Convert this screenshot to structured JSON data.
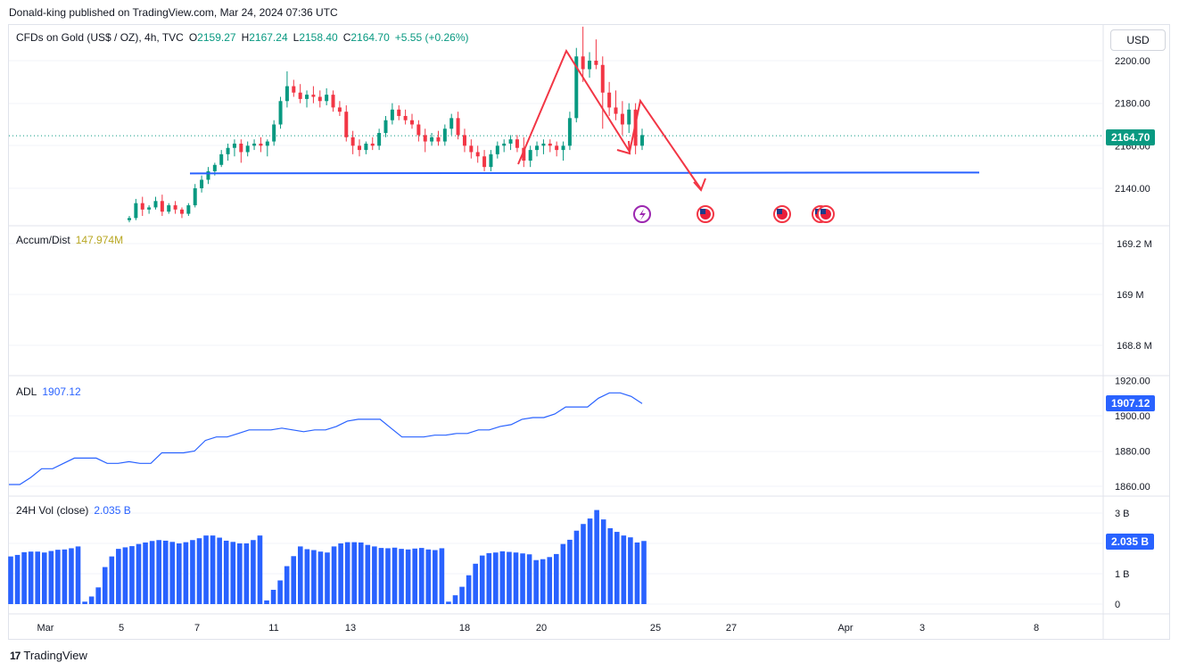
{
  "header": {
    "published": "Donald-king published on TradingView.com, Mar 24, 2024 07:36 UTC"
  },
  "symbol": {
    "name": "CFDs on Gold (US$ / OZ), 4h, TVC",
    "o_label": "O",
    "o": "2159.27",
    "h_label": "H",
    "h": "2167.24",
    "l_label": "L",
    "l": "2158.40",
    "c_label": "C",
    "c": "2164.70",
    "change": "+5.55 (+0.26%)"
  },
  "currency_button": "USD",
  "price_axis": {
    "ticks": [
      "2200.00",
      "2180.00",
      "2160.00",
      "2140.00"
    ],
    "current": "2164.70",
    "color_up": "#089981",
    "color_down": "#f23645"
  },
  "accum_dist": {
    "label": "Accum/Dist",
    "value": "147.974M",
    "ticks": [
      "169.2 M",
      "169 M",
      "168.8 M"
    ]
  },
  "adl": {
    "label": "ADL",
    "value": "1907.12",
    "ticks": [
      "1920.00",
      "1900.00",
      "1880.00",
      "1860.00"
    ],
    "current": "1907.12",
    "color": "#2962ff"
  },
  "volume": {
    "label": "24H Vol (close)",
    "value": "2.035 B",
    "ticks": [
      "3 B",
      "2 B",
      "1 B",
      "0"
    ],
    "current": "2.035 B",
    "color": "#2962ff"
  },
  "time_axis": [
    "Mar",
    "5",
    "7",
    "11",
    "13",
    "18",
    "20",
    "25",
    "27",
    "Apr",
    "3",
    "8"
  ],
  "footer": {
    "brand": "TradingView",
    "logo_glyph": "17"
  },
  "chart_data": {
    "type": "candlestick",
    "support_level": 2147,
    "candles": [
      [
        2125,
        2127,
        2124,
        2126
      ],
      [
        2126,
        2135,
        2125,
        2133
      ],
      [
        2133,
        2136,
        2127,
        2130
      ],
      [
        2130,
        2132,
        2128,
        2131
      ],
      [
        2131,
        2136,
        2130,
        2134
      ],
      [
        2134,
        2137,
        2127,
        2129
      ],
      [
        2129,
        2133,
        2128,
        2132
      ],
      [
        2132,
        2134,
        2128,
        2130
      ],
      [
        2130,
        2131,
        2126,
        2128
      ],
      [
        2128,
        2133,
        2127,
        2132
      ],
      [
        2132,
        2142,
        2131,
        2140
      ],
      [
        2140,
        2146,
        2138,
        2144
      ],
      [
        2144,
        2150,
        2142,
        2148
      ],
      [
        2148,
        2152,
        2146,
        2151
      ],
      [
        2151,
        2158,
        2150,
        2156
      ],
      [
        2156,
        2161,
        2153,
        2159
      ],
      [
        2159,
        2163,
        2155,
        2161
      ],
      [
        2161,
        2163,
        2152,
        2157
      ],
      [
        2157,
        2162,
        2155,
        2160
      ],
      [
        2160,
        2163,
        2158,
        2161
      ],
      [
        2161,
        2164,
        2157,
        2160
      ],
      [
        2160,
        2163,
        2155,
        2162
      ],
      [
        2162,
        2172,
        2160,
        2170
      ],
      [
        2170,
        2183,
        2168,
        2181
      ],
      [
        2181,
        2195,
        2178,
        2188
      ],
      [
        2188,
        2191,
        2183,
        2185
      ],
      [
        2185,
        2189,
        2180,
        2182
      ],
      [
        2182,
        2186,
        2178,
        2184
      ],
      [
        2184,
        2188,
        2180,
        2183
      ],
      [
        2183,
        2186,
        2178,
        2181
      ],
      [
        2181,
        2187,
        2179,
        2184
      ],
      [
        2184,
        2186,
        2176,
        2178
      ],
      [
        2178,
        2181,
        2174,
        2176
      ],
      [
        2176,
        2179,
        2162,
        2164
      ],
      [
        2164,
        2167,
        2156,
        2160
      ],
      [
        2160,
        2163,
        2155,
        2158
      ],
      [
        2158,
        2162,
        2156,
        2161
      ],
      [
        2161,
        2164,
        2158,
        2160
      ],
      [
        2160,
        2168,
        2158,
        2166
      ],
      [
        2166,
        2174,
        2164,
        2172
      ],
      [
        2172,
        2180,
        2170,
        2177
      ],
      [
        2177,
        2179,
        2172,
        2174
      ],
      [
        2174,
        2177,
        2170,
        2172
      ],
      [
        2172,
        2175,
        2168,
        2170
      ],
      [
        2170,
        2172,
        2162,
        2165
      ],
      [
        2165,
        2168,
        2157,
        2162
      ],
      [
        2162,
        2166,
        2160,
        2164
      ],
      [
        2164,
        2167,
        2160,
        2162
      ],
      [
        2162,
        2170,
        2160,
        2168
      ],
      [
        2168,
        2175,
        2165,
        2173
      ],
      [
        2173,
        2176,
        2163,
        2165
      ],
      [
        2165,
        2168,
        2157,
        2160
      ],
      [
        2160,
        2163,
        2154,
        2157
      ],
      [
        2157,
        2160,
        2152,
        2155
      ],
      [
        2155,
        2158,
        2148,
        2150
      ],
      [
        2150,
        2158,
        2148,
        2156
      ],
      [
        2156,
        2162,
        2154,
        2160
      ],
      [
        2160,
        2163,
        2157,
        2161
      ],
      [
        2161,
        2165,
        2158,
        2163
      ],
      [
        2163,
        2165,
        2157,
        2159
      ],
      [
        2159,
        2164,
        2150,
        2153
      ],
      [
        2153,
        2160,
        2150,
        2158
      ],
      [
        2158,
        2162,
        2155,
        2160
      ],
      [
        2160,
        2163,
        2156,
        2161
      ],
      [
        2161,
        2163,
        2157,
        2160
      ],
      [
        2160,
        2162,
        2155,
        2158
      ],
      [
        2158,
        2162,
        2153,
        2160
      ],
      [
        2160,
        2176,
        2158,
        2173
      ],
      [
        2173,
        2206,
        2171,
        2202
      ],
      [
        2202,
        2216,
        2190,
        2196
      ],
      [
        2196,
        2204,
        2192,
        2200
      ],
      [
        2200,
        2210,
        2196,
        2198
      ],
      [
        2198,
        2202,
        2168,
        2185
      ],
      [
        2185,
        2190,
        2174,
        2178
      ],
      [
        2178,
        2186,
        2172,
        2175
      ],
      [
        2175,
        2181,
        2165,
        2170
      ],
      [
        2170,
        2180,
        2166,
        2177
      ],
      [
        2177,
        2180,
        2156,
        2160
      ],
      [
        2160,
        2168,
        2158,
        2165
      ]
    ],
    "adl_series": [
      1861,
      1861,
      1865,
      1870,
      1870,
      1873,
      1876,
      1876,
      1876,
      1873,
      1873,
      1874,
      1873,
      1873,
      1879,
      1879,
      1879,
      1880,
      1886,
      1888,
      1888,
      1890,
      1892,
      1892,
      1892,
      1893,
      1892,
      1891,
      1892,
      1892,
      1894,
      1897,
      1898,
      1898,
      1898,
      1893,
      1888,
      1888,
      1888,
      1889,
      1889,
      1890,
      1890,
      1892,
      1892,
      1894,
      1895,
      1898,
      1899,
      1899,
      1901,
      1905,
      1905,
      1905,
      1910,
      1913,
      1913,
      1911,
      1907
    ],
    "volume_series": [
      1.57,
      1.62,
      1.71,
      1.73,
      1.73,
      1.7,
      1.75,
      1.79,
      1.8,
      1.84,
      1.9,
      0.08,
      0.25,
      0.55,
      1.22,
      1.57,
      1.82,
      1.87,
      1.91,
      1.98,
      2.03,
      2.08,
      2.11,
      2.09,
      2.05,
      2.0,
      2.04,
      2.11,
      2.17,
      2.26,
      2.26,
      2.19,
      2.09,
      2.05,
      2.0,
      2.0,
      2.11,
      2.26,
      0.12,
      0.47,
      0.78,
      1.25,
      1.58,
      1.9,
      1.81,
      1.78,
      1.73,
      1.7,
      1.9,
      2.0,
      2.04,
      2.04,
      2.03,
      1.95,
      1.9,
      1.85,
      1.84,
      1.86,
      1.82,
      1.8,
      1.83,
      1.85,
      1.8,
      1.78,
      1.84,
      0.08,
      0.29,
      0.57,
      0.95,
      1.33,
      1.6,
      1.68,
      1.7,
      1.74,
      1.72,
      1.7,
      1.67,
      1.64,
      1.45,
      1.48,
      1.55,
      1.65,
      1.98,
      2.12,
      2.42,
      2.64,
      2.82,
      3.1,
      2.79,
      2.5,
      2.38,
      2.26,
      2.2,
      2.03,
      2.08
    ]
  }
}
